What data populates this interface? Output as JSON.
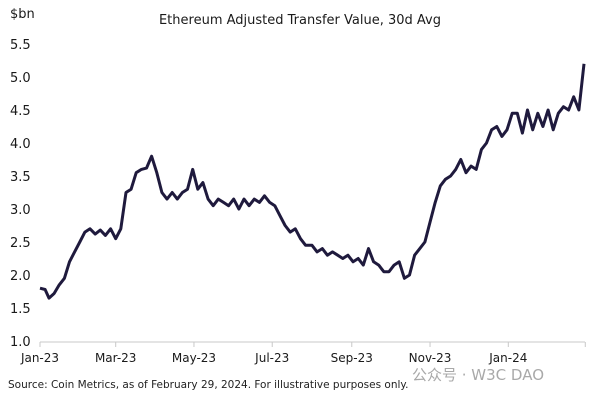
{
  "chart_data": {
    "type": "line",
    "title": "Ethereum Adjusted Transfer Value, 30d Avg",
    "ylabel": "$bn",
    "xlabel": "",
    "ylim": [
      1.0,
      5.5
    ],
    "yticks": [
      "1.0",
      "1.5",
      "2.0",
      "2.5",
      "3.0",
      "3.5",
      "4.0",
      "4.5",
      "5.0",
      "5.5"
    ],
    "xlim": [
      "2023-01-01",
      "2024-02-29"
    ],
    "xticks": [
      {
        "date": "2023-01-01",
        "label": "Jan-23"
      },
      {
        "date": "2023-03-01",
        "label": "Mar-23"
      },
      {
        "date": "2023-05-01",
        "label": "May-23"
      },
      {
        "date": "2023-07-01",
        "label": "Jul-23"
      },
      {
        "date": "2023-09-01",
        "label": "Sep-23"
      },
      {
        "date": "2023-11-01",
        "label": "Nov-23"
      },
      {
        "date": "2024-01-01",
        "label": "Jan-24"
      },
      {
        "date": "2024-03-01",
        "label": ""
      }
    ],
    "grid": false,
    "line_color": "#1f1a3d",
    "series": [
      {
        "x": [
          "2023-01-01",
          "2023-01-05",
          "2023-01-08",
          "2023-01-12",
          "2023-01-16",
          "2023-01-20",
          "2023-01-24",
          "2023-01-28",
          "2023-02-01",
          "2023-02-05",
          "2023-02-09",
          "2023-02-13",
          "2023-02-17",
          "2023-02-21",
          "2023-02-25",
          "2023-03-01",
          "2023-03-05",
          "2023-03-09",
          "2023-03-13",
          "2023-03-17",
          "2023-03-21",
          "2023-03-25",
          "2023-03-29",
          "2023-04-02",
          "2023-04-06",
          "2023-04-10",
          "2023-04-14",
          "2023-04-18",
          "2023-04-22",
          "2023-04-26",
          "2023-04-30",
          "2023-05-04",
          "2023-05-08",
          "2023-05-12",
          "2023-05-16",
          "2023-05-20",
          "2023-05-24",
          "2023-05-28",
          "2023-06-01",
          "2023-06-05",
          "2023-06-09",
          "2023-06-13",
          "2023-06-17",
          "2023-06-21",
          "2023-06-25",
          "2023-06-29",
          "2023-07-03",
          "2023-07-07",
          "2023-07-11",
          "2023-07-15",
          "2023-07-19",
          "2023-07-23",
          "2023-07-27",
          "2023-08-01",
          "2023-08-05",
          "2023-08-09",
          "2023-08-13",
          "2023-08-17",
          "2023-08-21",
          "2023-08-25",
          "2023-08-29",
          "2023-09-02",
          "2023-09-06",
          "2023-09-10",
          "2023-09-14",
          "2023-09-18",
          "2023-09-22",
          "2023-09-26",
          "2023-09-30",
          "2023-10-04",
          "2023-10-08",
          "2023-10-12",
          "2023-10-16",
          "2023-10-20",
          "2023-10-24",
          "2023-10-28",
          "2023-11-01",
          "2023-11-05",
          "2023-11-09",
          "2023-11-13",
          "2023-11-17",
          "2023-11-21",
          "2023-11-25",
          "2023-11-29",
          "2023-12-03",
          "2023-12-07",
          "2023-12-11",
          "2023-12-15",
          "2023-12-19",
          "2023-12-23",
          "2023-12-27",
          "2023-12-31",
          "2024-01-04",
          "2024-01-08",
          "2024-01-12",
          "2024-01-16",
          "2024-01-20",
          "2024-01-24",
          "2024-01-28",
          "2024-02-01",
          "2024-02-05",
          "2024-02-09",
          "2024-02-13",
          "2024-02-17",
          "2024-02-21",
          "2024-02-25",
          "2024-02-29"
        ],
        "values": [
          1.8,
          1.78,
          1.65,
          1.72,
          1.85,
          1.95,
          2.2,
          2.35,
          2.5,
          2.65,
          2.7,
          2.62,
          2.68,
          2.6,
          2.7,
          2.55,
          2.7,
          3.25,
          3.3,
          3.55,
          3.6,
          3.62,
          3.8,
          3.55,
          3.25,
          3.15,
          3.25,
          3.15,
          3.25,
          3.3,
          3.6,
          3.3,
          3.4,
          3.15,
          3.05,
          3.15,
          3.1,
          3.05,
          3.15,
          3.0,
          3.15,
          3.05,
          3.15,
          3.1,
          3.2,
          3.1,
          3.05,
          2.9,
          2.75,
          2.65,
          2.7,
          2.55,
          2.45,
          2.45,
          2.35,
          2.4,
          2.3,
          2.35,
          2.3,
          2.25,
          2.3,
          2.2,
          2.25,
          2.15,
          2.4,
          2.2,
          2.15,
          2.05,
          2.05,
          2.15,
          2.2,
          1.95,
          2.0,
          2.3,
          2.4,
          2.5,
          2.8,
          3.1,
          3.35,
          3.45,
          3.5,
          3.6,
          3.75,
          3.55,
          3.65,
          3.6,
          3.9,
          4.0,
          4.2,
          4.25,
          4.1,
          4.2,
          4.45,
          4.45,
          4.15,
          4.5,
          4.2,
          4.45,
          4.25,
          4.5,
          4.2,
          4.45,
          4.55,
          4.5,
          4.7,
          4.5,
          5.2
        ]
      }
    ]
  },
  "footer": {
    "source": "Source: Coin Metrics, as of February 29, 2024. For illustrative purposes only.",
    "watermark": "公众号 · W3C DAO"
  }
}
